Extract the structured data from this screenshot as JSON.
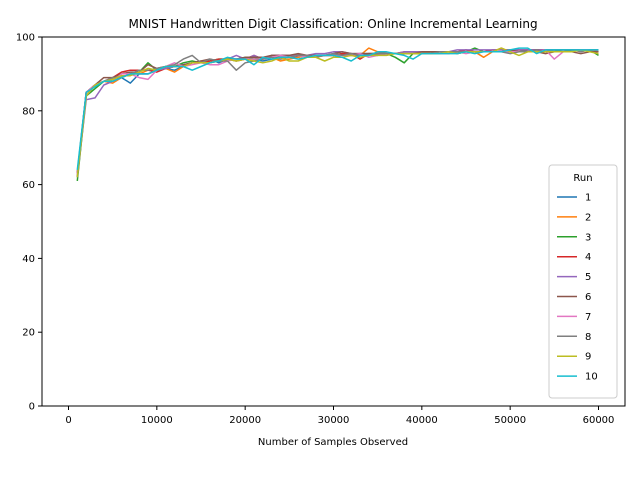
{
  "chart_data": {
    "type": "line",
    "title": "MNIST Handwritten Digit Classification: Online Incremental Learning",
    "xlabel": "Number of Samples Observed",
    "ylabel": "",
    "xlim": [
      -3000,
      63000
    ],
    "ylim": [
      0,
      100
    ],
    "xticks": [
      0,
      10000,
      20000,
      30000,
      40000,
      50000,
      60000
    ],
    "yticks": [
      0,
      20,
      40,
      60,
      80,
      100
    ],
    "grid": false,
    "legend": {
      "title": "Run",
      "placement": "lower-right"
    },
    "x_start": 1000,
    "x_step": 1000,
    "x_count": 60,
    "series": [
      {
        "name": "1",
        "color": "#1f77b4",
        "values": [
          63,
          85,
          87,
          88,
          88,
          89,
          87.5,
          90,
          90,
          91,
          91.5,
          91,
          92,
          93,
          93,
          94,
          93,
          94,
          93.5,
          94,
          94,
          93.5,
          94,
          94.5,
          94.5,
          94.5,
          95,
          95,
          95,
          95,
          95.5,
          95,
          95,
          95.5,
          95,
          95.5,
          95.5,
          95.5,
          95.5,
          96,
          95.5,
          96,
          96,
          96,
          96,
          96,
          96,
          96,
          96,
          96.5,
          96,
          96.5,
          96.5,
          96.5,
          96.5,
          96.5,
          96.5,
          96.5,
          96.5,
          96.5
        ]
      },
      {
        "name": "2",
        "color": "#ff7f0e",
        "values": [
          62,
          84,
          87,
          88,
          87.5,
          89,
          90,
          90,
          91,
          91,
          91.5,
          90.5,
          92,
          93,
          93.5,
          93,
          93.5,
          94,
          93.5,
          94,
          94,
          94.5,
          94.5,
          93.5,
          94,
          94.5,
          95,
          94.5,
          95,
          95,
          95.5,
          95.5,
          95,
          97,
          96,
          95.5,
          95.5,
          95.5,
          95.5,
          95.5,
          96,
          96,
          95.5,
          96,
          96,
          96,
          94.5,
          96,
          97,
          96,
          96.5,
          96,
          96,
          96,
          96,
          96,
          96.5,
          96.5,
          96.5,
          96
        ]
      },
      {
        "name": "3",
        "color": "#2ca02c",
        "values": [
          61,
          84,
          86,
          88,
          88.5,
          89,
          90,
          90.5,
          93,
          91,
          91.5,
          92,
          93,
          93.5,
          93,
          93.5,
          94,
          94,
          94,
          94.5,
          94,
          94.5,
          94.5,
          94.5,
          95,
          95,
          95,
          95,
          95,
          95,
          95.5,
          95,
          95.5,
          95.5,
          95.5,
          95.5,
          94.5,
          93,
          95.5,
          95.5,
          95.5,
          96,
          96,
          96,
          96,
          97,
          96,
          96,
          96,
          96,
          96,
          96.5,
          96.5,
          96.5,
          96.5,
          96,
          96.5,
          96.5,
          96.5,
          95
        ]
      },
      {
        "name": "4",
        "color": "#d62728",
        "values": [
          63,
          85,
          87,
          88,
          89,
          90.5,
          91,
          91,
          91,
          90.5,
          91.5,
          92,
          92,
          93,
          93,
          93.5,
          94,
          94,
          94,
          94,
          95,
          94,
          95,
          95,
          95,
          95,
          95,
          95,
          95,
          95,
          95.5,
          95.5,
          94,
          95.5,
          95.5,
          95.5,
          95.5,
          96,
          96,
          96,
          96,
          96,
          96,
          96,
          96.5,
          96,
          96,
          96.5,
          96.5,
          96.5,
          96.5,
          96.5,
          96.5,
          96.5,
          96.5,
          96.5,
          96.5,
          96.5,
          96.5,
          96.5
        ]
      },
      {
        "name": "5",
        "color": "#9467bd",
        "values": [
          62,
          83,
          83.5,
          87,
          88,
          89,
          90,
          90,
          90,
          91,
          91.5,
          92,
          92.5,
          93,
          93,
          93,
          93.5,
          94,
          95,
          94,
          95,
          94,
          95,
          95,
          95,
          95,
          95,
          95.5,
          95.5,
          96,
          96,
          95.5,
          95.5,
          95.5,
          95.5,
          95.5,
          95.5,
          96,
          96,
          96,
          96,
          96,
          96,
          96.5,
          96.5,
          96.5,
          96.5,
          96.5,
          96.5,
          96.5,
          96.5,
          96.5,
          96.5,
          96.5,
          96.5,
          96.5,
          96.5,
          96.5,
          96.5,
          96.5
        ]
      },
      {
        "name": "6",
        "color": "#8c564b",
        "values": [
          63,
          85,
          87,
          89,
          89,
          90,
          90.5,
          90.5,
          92.5,
          91.5,
          92,
          92,
          92.5,
          93,
          93.5,
          94,
          93.5,
          94,
          94,
          94.5,
          94.5,
          94.5,
          95,
          95,
          95,
          95.5,
          95,
          95,
          95,
          95.5,
          96,
          95.5,
          95.5,
          95.5,
          95.5,
          95.5,
          95.5,
          95.5,
          95.5,
          96,
          96,
          96,
          96,
          95.5,
          96,
          96,
          96,
          96,
          96,
          96.5,
          96,
          96,
          96,
          95.5,
          96,
          96,
          96,
          95.5,
          96,
          96
        ]
      },
      {
        "name": "7",
        "color": "#e377c2",
        "values": [
          63,
          85,
          87,
          88,
          88,
          90,
          90,
          89,
          88.5,
          91,
          92,
          93,
          92,
          92.5,
          93,
          92.5,
          92.5,
          93.5,
          94,
          94,
          94,
          94,
          94.5,
          95,
          94.5,
          95,
          94.5,
          95,
          95,
          95,
          95,
          95,
          95.5,
          94.5,
          95,
          95.5,
          95.5,
          95.5,
          95.5,
          95.5,
          95.5,
          95.5,
          95.5,
          96,
          95.5,
          96,
          96,
          96,
          96,
          96,
          96,
          96,
          96,
          96.5,
          94,
          96,
          96,
          96.5,
          96.5,
          96.5
        ]
      },
      {
        "name": "8",
        "color": "#7f7f7f",
        "values": [
          62,
          84,
          87,
          88,
          89,
          89,
          90,
          91,
          91,
          91.5,
          92,
          92.5,
          94,
          95,
          93,
          94,
          93.5,
          93.5,
          91,
          93,
          93.5,
          94,
          94.5,
          94,
          94.5,
          95,
          95,
          94.5,
          95,
          95.5,
          95,
          95.5,
          95,
          95,
          95.5,
          95.5,
          95.5,
          95.5,
          95.5,
          95.5,
          95.5,
          96,
          96,
          96,
          96,
          96,
          96,
          96,
          96,
          95.5,
          96,
          96,
          96.5,
          96,
          96.5,
          96.5,
          96.5,
          96,
          96.5,
          96.5
        ]
      },
      {
        "name": "9",
        "color": "#bcbd22",
        "values": [
          62,
          84,
          87,
          88,
          88.5,
          89.5,
          89.5,
          90.5,
          91.5,
          91,
          92,
          92,
          92,
          93,
          93,
          93,
          93.5,
          94,
          93.5,
          94,
          93.5,
          93,
          93.5,
          94.5,
          93.5,
          93.5,
          94.5,
          94.5,
          93.5,
          94.5,
          94.5,
          95,
          94.5,
          95,
          95,
          95,
          95.5,
          95.5,
          95.5,
          95.5,
          95.5,
          95.5,
          96,
          95.5,
          96,
          96,
          96,
          96,
          97,
          96,
          95,
          96,
          96,
          96,
          96,
          96,
          96,
          96.5,
          96,
          95.5
        ]
      },
      {
        "name": "10",
        "color": "#17becf",
        "values": [
          64,
          85,
          86.5,
          88,
          88,
          89,
          90,
          90,
          90,
          91,
          92,
          92,
          92,
          91,
          92,
          93,
          93.5,
          94.5,
          94,
          94,
          92.5,
          94.5,
          94,
          94.5,
          94.5,
          94,
          94.5,
          95,
          95,
          95,
          94.5,
          93.5,
          95,
          95,
          96,
          96,
          95.5,
          95,
          94,
          95.5,
          95.5,
          95.5,
          95.5,
          95.5,
          96,
          95.5,
          96,
          96,
          96,
          96.5,
          97,
          97,
          95.5,
          96.5,
          96.5,
          96.5,
          96.5,
          96.5,
          96.5,
          96.5
        ]
      }
    ]
  }
}
